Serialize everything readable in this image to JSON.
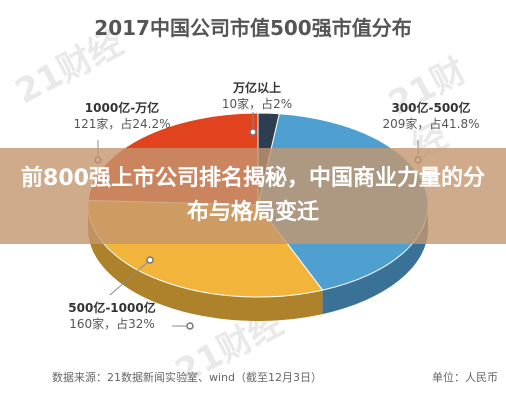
{
  "chart_data": {
    "type": "pie",
    "title": "2017中国公司市值500强市值分布",
    "slices": [
      {
        "label": "300亿-500亿",
        "count_text": "209家，占41.8%",
        "value": 41.8,
        "color": "#4f9fd0"
      },
      {
        "label": "500亿-1000亿",
        "count_text": "160家，占32%",
        "value": 32,
        "color": "#f2b43a"
      },
      {
        "label": "1000亿-万亿",
        "count_text": "121家，占24.2%",
        "value": 24.2,
        "color": "#e2431f"
      },
      {
        "label": "万亿以上",
        "count_text": "10家，占2%",
        "value": 2,
        "color": "#2c3e50"
      }
    ]
  },
  "overlay": {
    "headline": "前800强上市公司排名揭秘，中国商业力量的分布与格局变迁"
  },
  "watermark": "21财经",
  "footer": {
    "source": "数据来源：21数据新闻实验室、wind（截至12月3日）",
    "unit": "单位：人民币"
  }
}
